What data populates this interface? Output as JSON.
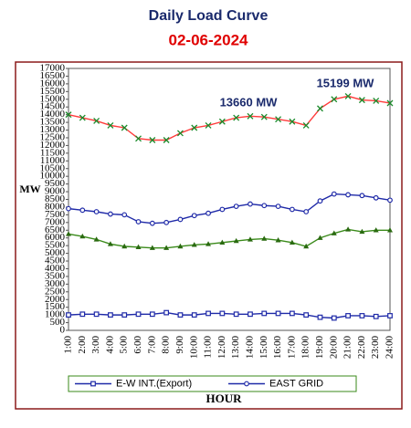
{
  "chart_data": {
    "type": "line",
    "title": "Daily Load Curve",
    "subtitle": "02-06-2024",
    "y_label": "MW",
    "x_label": "HOUR",
    "annotations": [
      "13660 MW",
      "15199 MW"
    ],
    "categories": [
      "1:00",
      "2:00",
      "3:00",
      "4:00",
      "5:00",
      "6:00",
      "7:00",
      "8:00",
      "9:00",
      "10:00",
      "11:00",
      "12:00",
      "13:00",
      "14:00",
      "15:00",
      "16:00",
      "17:00",
      "18:00",
      "19:00",
      "20:00",
      "21:00",
      "22:00",
      "23:00",
      "24:00"
    ],
    "series": [
      {
        "color": "#ff3b3b",
        "marker_color": "#1a8a2a",
        "marker": "x",
        "values": [
          14000,
          13800,
          13600,
          13300,
          13150,
          12450,
          12350,
          12350,
          12800,
          13150,
          13300,
          13550,
          13800,
          13900,
          13850,
          13700,
          13550,
          13300,
          14400,
          15000,
          15199,
          14950,
          14900,
          14750
        ]
      },
      {
        "name": "EAST GRID",
        "color": "#1f2aa8",
        "marker_color": "#1f2aa8",
        "marker": "circle",
        "values": [
          7900,
          7800,
          7700,
          7550,
          7500,
          7050,
          6950,
          7000,
          7200,
          7450,
          7600,
          7850,
          8050,
          8200,
          8100,
          8050,
          7850,
          7700,
          8400,
          8850,
          8800,
          8750,
          8600,
          8450
        ]
      },
      {
        "color": "#3a8a1a",
        "marker_color": "#2a6a10",
        "marker": "triangle",
        "values": [
          6250,
          6100,
          5900,
          5600,
          5450,
          5400,
          5350,
          5350,
          5450,
          5550,
          5600,
          5700,
          5800,
          5900,
          5950,
          5850,
          5700,
          5450,
          6000,
          6300,
          6550,
          6400,
          6500,
          6500
        ]
      },
      {
        "name": "E-W INT.(Export)",
        "color": "#1f2aa8",
        "marker_color": "#1f2aa8",
        "marker": "square",
        "values": [
          1000,
          1050,
          1050,
          1000,
          1000,
          1050,
          1050,
          1150,
          1000,
          1000,
          1100,
          1100,
          1050,
          1050,
          1100,
          1100,
          1100,
          1000,
          850,
          800,
          950,
          950,
          900,
          950
        ]
      }
    ],
    "ylim": [
      0,
      17000
    ],
    "yticks": [
      0,
      500,
      1000,
      1500,
      2000,
      2500,
      3000,
      3500,
      4000,
      4500,
      5000,
      5500,
      6000,
      6500,
      7000,
      7500,
      8000,
      8500,
      9000,
      9500,
      10000,
      10500,
      11000,
      11500,
      12000,
      12500,
      13000,
      13500,
      14000,
      14500,
      15000,
      15500,
      16000,
      16500,
      17000
    ],
    "grid": false
  }
}
